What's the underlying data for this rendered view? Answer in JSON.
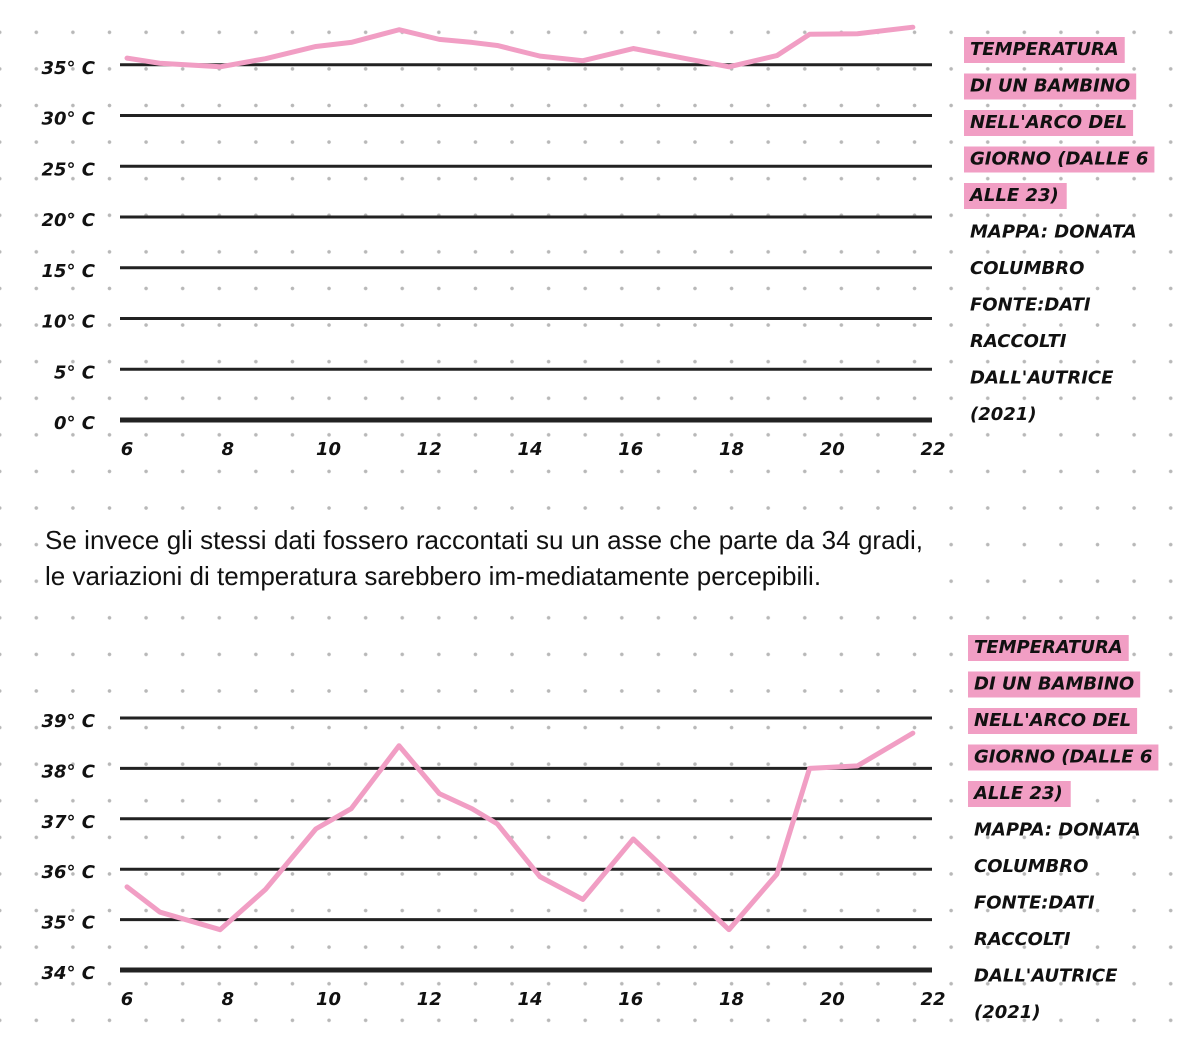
{
  "paragraph": "Se invece gli stessi dati fossero raccontati su un asse che parte da 34 gradi, le variazioni di temperatura sarebbero im-mediatamente percepibili.",
  "chart_data": [
    {
      "type": "line",
      "caption": [
        "TEMPERATURA",
        "DI UN BAMBINO",
        "NELL'ARCO DEL",
        "GIORNO (DALLE 6",
        "ALLE 23)"
      ],
      "credits": [
        "MAPPA: DONATA",
        "COLUMBRO",
        "FONTE:DATI",
        "RACCOLTI",
        "DALL'AUTRICE",
        "(2021)"
      ],
      "x": [
        6,
        6.65,
        7.85,
        8.75,
        9.75,
        10.45,
        11.4,
        12.2,
        12.85,
        13.35,
        14.2,
        15.05,
        16.05,
        17,
        17.95,
        18.9,
        19.55,
        20.5,
        21.6
      ],
      "values": [
        35.65,
        35.15,
        34.8,
        35.6,
        36.8,
        37.2,
        38.45,
        37.5,
        37.2,
        36.9,
        35.85,
        35.4,
        36.6,
        35.7,
        34.8,
        35.9,
        38.0,
        38.05,
        38.7
      ],
      "color": "#f19ec4",
      "xlim": [
        6,
        22
      ],
      "xticks": [
        6,
        8,
        10,
        12,
        14,
        16,
        18,
        20,
        22
      ],
      "ylim": [
        0,
        40
      ],
      "yticks": [
        {
          "value": 0,
          "label": "0° C"
        },
        {
          "value": 5,
          "label": "5° C"
        },
        {
          "value": 10,
          "label": "10° C"
        },
        {
          "value": 15,
          "label": "15° C"
        },
        {
          "value": 20,
          "label": "20° C"
        },
        {
          "value": 25,
          "label": "25° C"
        },
        {
          "value": 30,
          "label": "30° C"
        },
        {
          "value": 35,
          "label": "35° C"
        }
      ],
      "grid": true
    },
    {
      "type": "line",
      "caption": [
        "TEMPERATURA",
        "DI UN BAMBINO",
        "NELL'ARCO DEL",
        "GIORNO (DALLE 6",
        "ALLE 23)"
      ],
      "credits": [
        "MAPPA: DONATA",
        "COLUMBRO",
        "FONTE:DATI",
        "RACCOLTI",
        "DALL'AUTRICE",
        "(2021)"
      ],
      "x": [
        6,
        6.65,
        7.85,
        8.75,
        9.75,
        10.45,
        11.4,
        12.2,
        12.85,
        13.35,
        14.2,
        15.05,
        16.05,
        17,
        17.95,
        18.9,
        19.55,
        20.5,
        21.6
      ],
      "values": [
        35.65,
        35.15,
        34.8,
        35.6,
        36.8,
        37.2,
        38.45,
        37.5,
        37.2,
        36.9,
        35.85,
        35.4,
        36.6,
        35.7,
        34.8,
        35.9,
        38.0,
        38.05,
        38.7
      ],
      "color": "#f19ec4",
      "xlim": [
        6,
        22
      ],
      "xticks": [
        6,
        8,
        10,
        12,
        14,
        16,
        18,
        20,
        22
      ],
      "ylim": [
        34,
        39.25
      ],
      "yticks": [
        {
          "value": 34,
          "label": "34° C"
        },
        {
          "value": 35,
          "label": "35° C"
        },
        {
          "value": 36,
          "label": "36° C"
        },
        {
          "value": 37,
          "label": "37° C"
        },
        {
          "value": 38,
          "label": "38° C"
        },
        {
          "value": 39,
          "label": "39° C"
        }
      ],
      "grid": true
    }
  ]
}
